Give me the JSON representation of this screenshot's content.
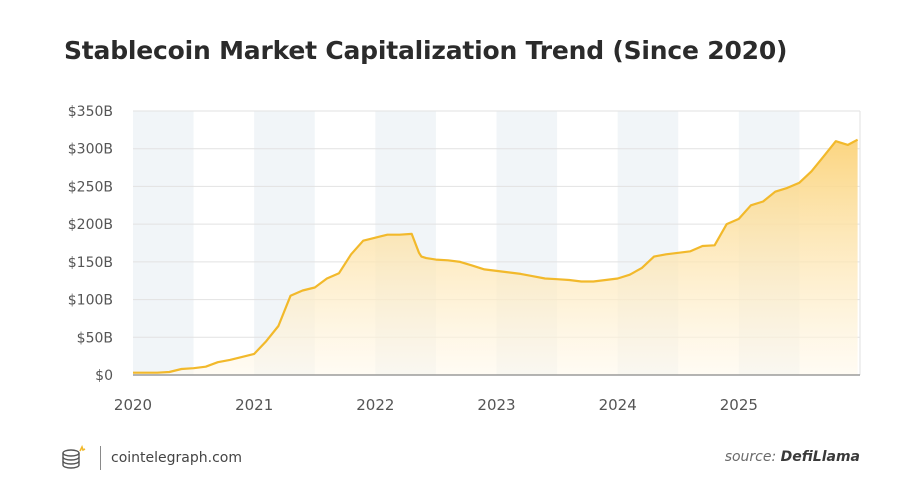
{
  "title": "Stablecoin Market Capitalization Trend (Since 2020)",
  "footer": {
    "brand": "cointelegraph.com",
    "source_prefix": "source:",
    "source_name": "DefiLlama"
  },
  "colors": {
    "line": "#f2b92b",
    "fill_top": "#fbd37a",
    "fill_bottom": "#fff9ec",
    "band": "#f1f5f8",
    "grid": "#e2e2e2",
    "axis_text": "#555555"
  },
  "chart_data": {
    "type": "area",
    "title": "Stablecoin Market Capitalization Trend (Since 2020)",
    "xlabel": "",
    "ylabel": "",
    "xlim": [
      2020.0,
      2026.0
    ],
    "ylim": [
      0,
      350
    ],
    "x_ticks": [
      2020,
      2021,
      2022,
      2023,
      2024,
      2025
    ],
    "x_tick_labels": [
      "2020",
      "2021",
      "2022",
      "2023",
      "2024",
      "2025"
    ],
    "y_ticks": [
      0,
      50,
      100,
      150,
      200,
      250,
      300,
      350
    ],
    "y_tick_labels": [
      "$0",
      "$50B",
      "$100B",
      "$150B",
      "$200B",
      "$250B",
      "$300B",
      "$350B"
    ],
    "shaded_half_years": [
      2020.0,
      2021.0,
      2022.0,
      2023.0,
      2024.0,
      2025.0
    ],
    "grid": true,
    "series": [
      {
        "unit": "billion USD",
        "x": [
          2020.0,
          2020.1,
          2020.2,
          2020.3,
          2020.4,
          2020.5,
          2020.6,
          2020.7,
          2020.8,
          2020.9,
          2021.0,
          2021.1,
          2021.2,
          2021.3,
          2021.4,
          2021.5,
          2021.6,
          2021.7,
          2021.8,
          2021.9,
          2022.0,
          2022.1,
          2022.2,
          2022.3,
          2022.36,
          2022.38,
          2022.42,
          2022.5,
          2022.6,
          2022.7,
          2022.8,
          2022.9,
          2023.0,
          2023.1,
          2023.2,
          2023.3,
          2023.4,
          2023.5,
          2023.6,
          2023.7,
          2023.8,
          2023.9,
          2024.0,
          2024.1,
          2024.2,
          2024.3,
          2024.4,
          2024.5,
          2024.6,
          2024.7,
          2024.8,
          2024.9,
          2025.0,
          2025.1,
          2025.2,
          2025.3,
          2025.4,
          2025.5,
          2025.6,
          2025.7,
          2025.8,
          2025.9,
          2025.98
        ],
        "values": [
          3,
          3,
          3,
          4,
          8,
          9,
          11,
          17,
          20,
          24,
          28,
          45,
          65,
          105,
          112,
          116,
          128,
          135,
          160,
          178,
          182,
          186,
          186,
          187,
          162,
          157,
          155,
          153,
          152,
          150,
          145,
          140,
          138,
          136,
          134,
          131,
          128,
          127,
          126,
          124,
          124,
          126,
          128,
          133,
          142,
          157,
          160,
          162,
          164,
          171,
          172,
          200,
          207,
          225,
          230,
          243,
          248,
          255,
          270,
          290,
          310,
          305,
          312
        ]
      }
    ]
  }
}
